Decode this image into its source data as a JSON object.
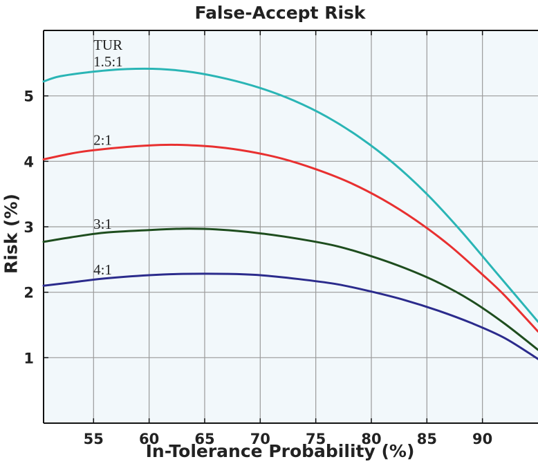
{
  "chart_data": {
    "type": "line",
    "title": "False-Accept Risk",
    "xlabel": "In-Tolerance Probability (%)",
    "ylabel": "Risk (%)",
    "xlim": [
      50.5,
      95
    ],
    "ylim": [
      0,
      6
    ],
    "xticks": [
      55,
      60,
      65,
      70,
      75,
      80,
      85,
      90
    ],
    "yticks": [
      1,
      2,
      3,
      4,
      5
    ],
    "grid": true,
    "legend_title": "TUR",
    "series": [
      {
        "name": "1.5:1",
        "color": "#2ab5b5",
        "x": [
          50.5,
          52,
          55,
          58,
          61,
          64,
          67,
          70,
          73,
          76,
          79,
          82,
          85,
          88,
          91,
          93,
          95
        ],
        "y": [
          5.22,
          5.3,
          5.37,
          5.41,
          5.41,
          5.36,
          5.26,
          5.12,
          4.93,
          4.68,
          4.36,
          3.97,
          3.5,
          2.95,
          2.35,
          1.95,
          1.55
        ]
      },
      {
        "name": "2:1",
        "color": "#e83030",
        "x": [
          50.5,
          53,
          55,
          58,
          61,
          63,
          66,
          69,
          72,
          75,
          78,
          81,
          84,
          87,
          90,
          92,
          95
        ],
        "y": [
          4.03,
          4.12,
          4.17,
          4.22,
          4.25,
          4.25,
          4.22,
          4.15,
          4.04,
          3.88,
          3.68,
          3.42,
          3.1,
          2.72,
          2.27,
          1.95,
          1.4
        ]
      },
      {
        "name": "3:1",
        "color": "#1e4d1e",
        "x": [
          50.5,
          53,
          56,
          60,
          63,
          66,
          70,
          74,
          77,
          80,
          83,
          86,
          89,
          92,
          95
        ],
        "y": [
          2.77,
          2.84,
          2.91,
          2.95,
          2.97,
          2.96,
          2.9,
          2.8,
          2.7,
          2.55,
          2.37,
          2.15,
          1.87,
          1.52,
          1.12
        ]
      },
      {
        "name": "4:1",
        "color": "#2b2b8c",
        "x": [
          50.5,
          53,
          56,
          60,
          63,
          67,
          70,
          74,
          77,
          80,
          83,
          86,
          89,
          92,
          95
        ],
        "y": [
          2.1,
          2.15,
          2.21,
          2.26,
          2.28,
          2.28,
          2.26,
          2.19,
          2.12,
          2.01,
          1.88,
          1.72,
          1.53,
          1.3,
          0.98
        ]
      }
    ]
  }
}
